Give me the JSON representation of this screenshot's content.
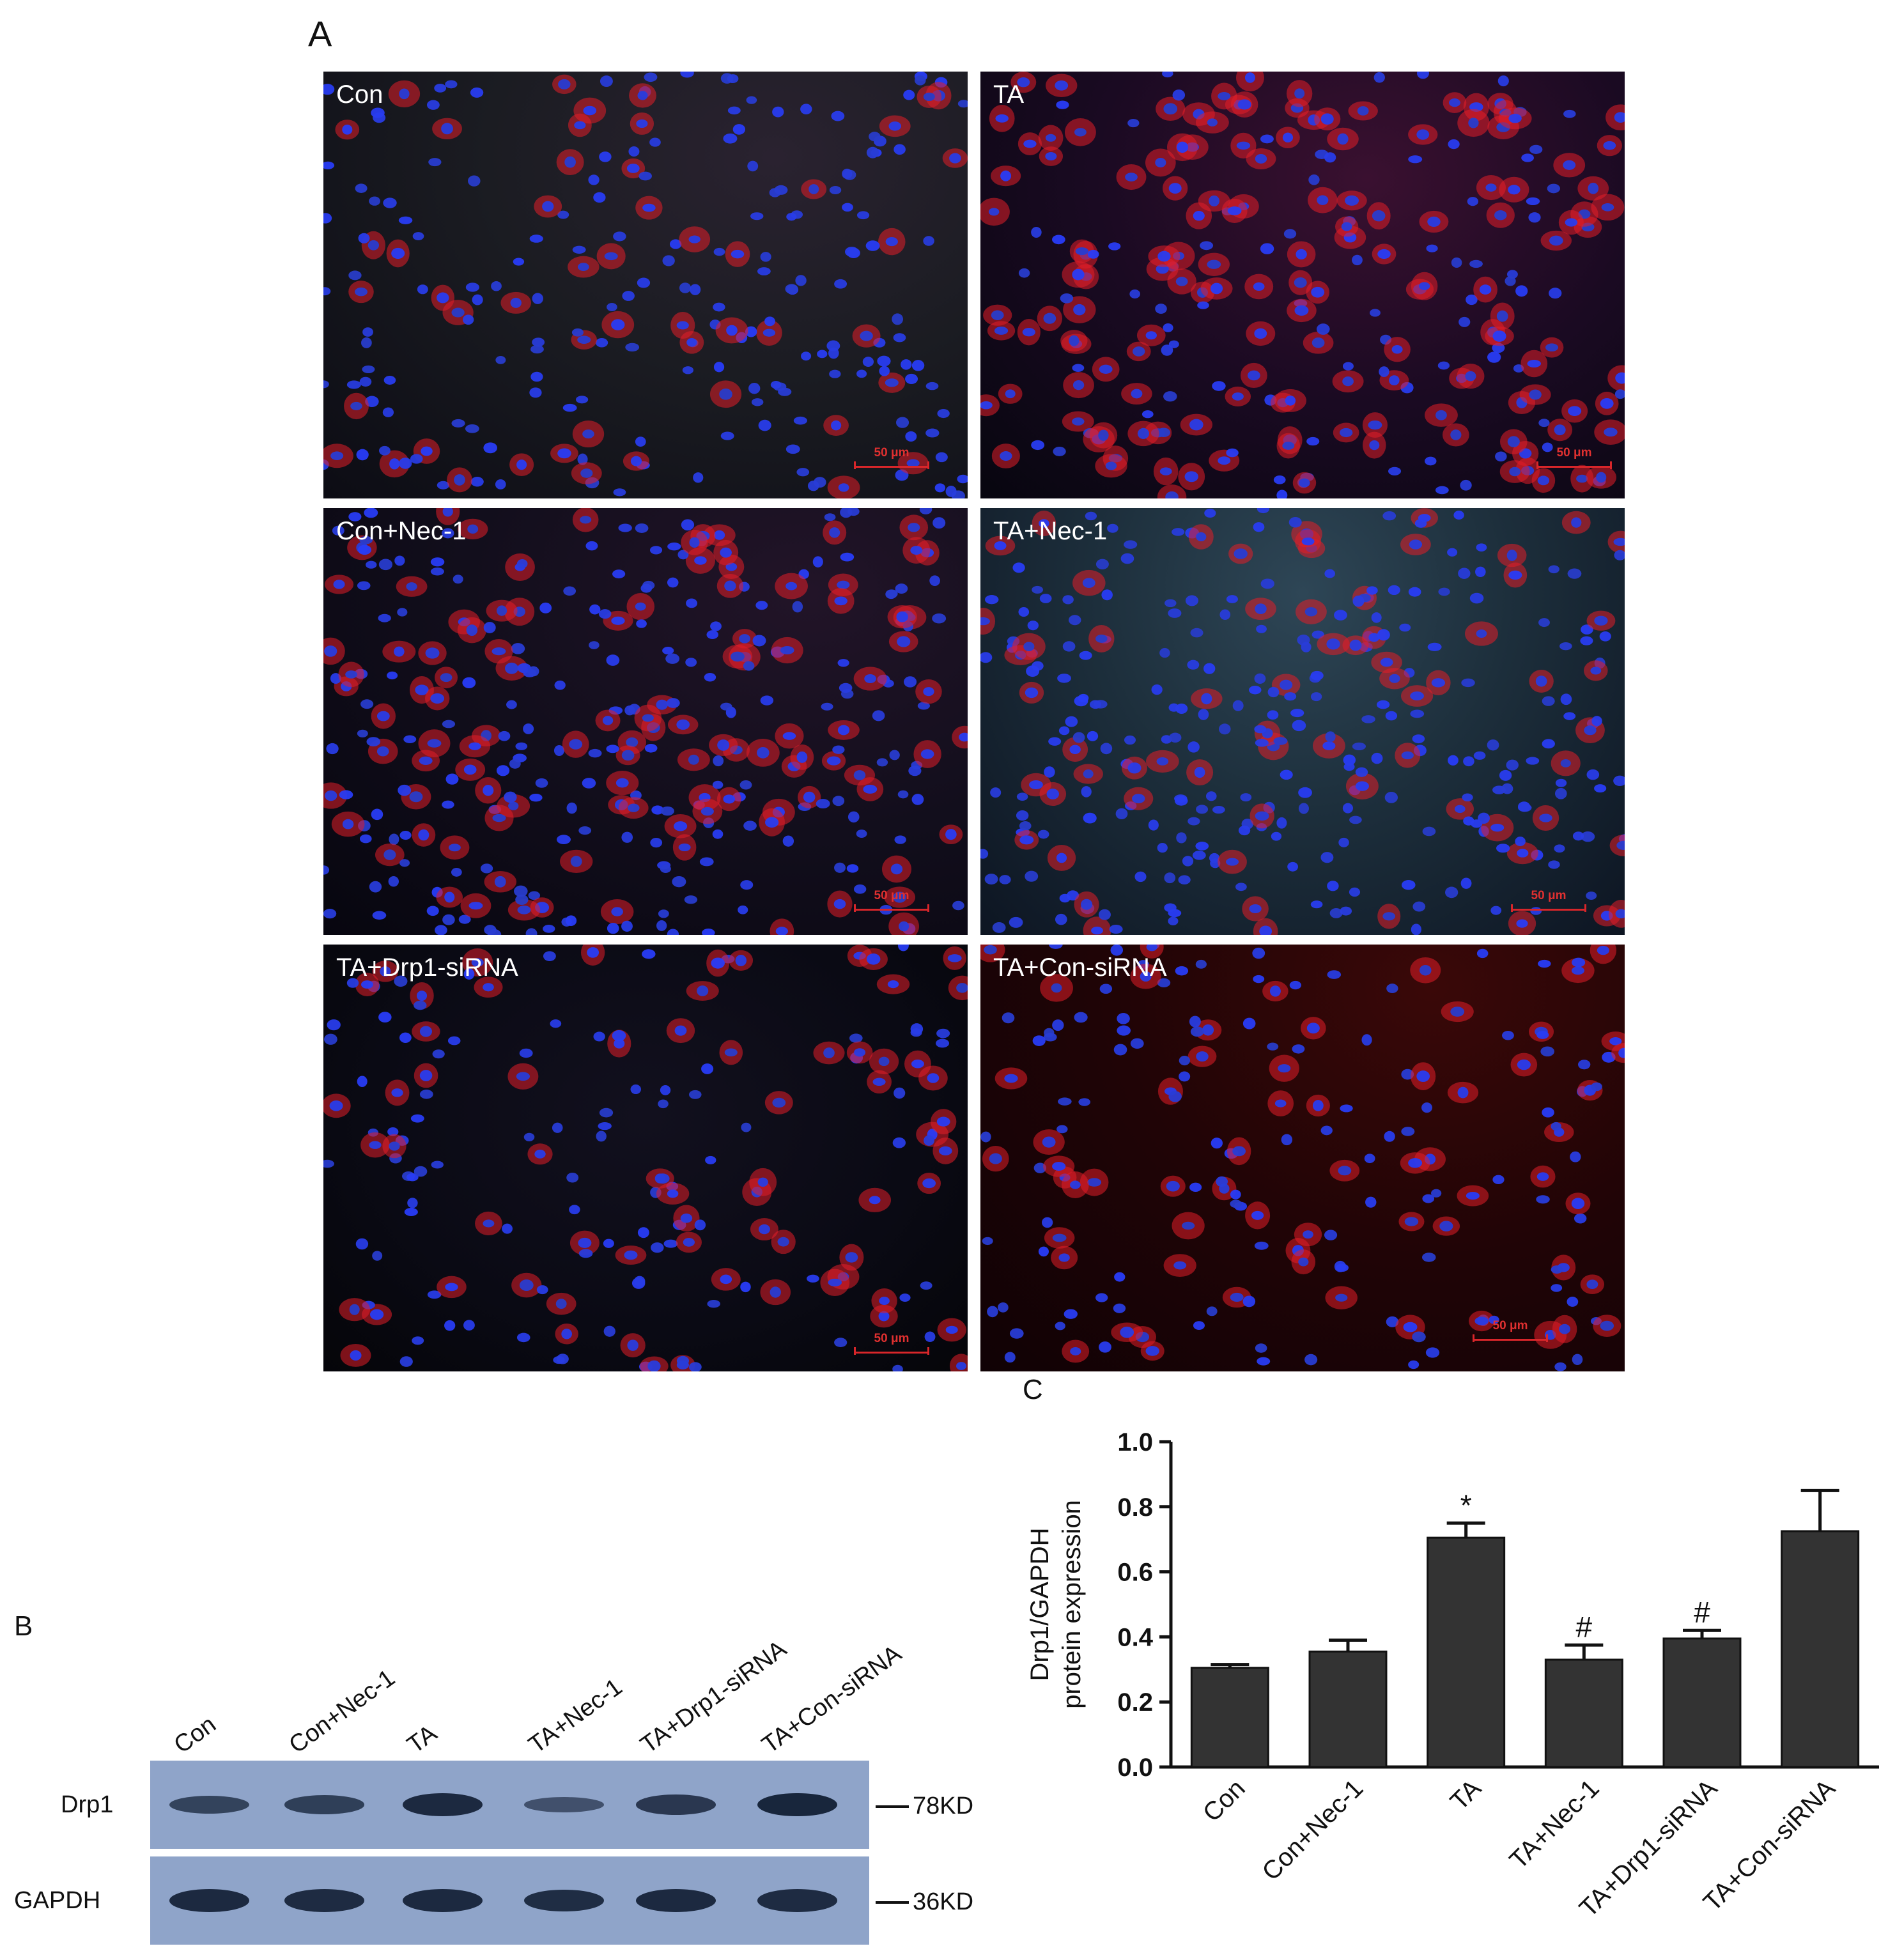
{
  "panels": {
    "a": "A",
    "b": "B",
    "c": "C"
  },
  "micrographs": [
    {
      "label": "Con",
      "scale": "50 μm"
    },
    {
      "label": "TA",
      "scale": "50 μm"
    },
    {
      "label": "Con+Nec-1",
      "scale": "50 μm"
    },
    {
      "label": "TA+Nec-1",
      "scale": "50 μm"
    },
    {
      "label": "TA+Drp1-siRNA",
      "scale": "50 μm"
    },
    {
      "label": "TA+Con-siRNA",
      "scale": "50 μm"
    }
  ],
  "western_blot": {
    "lanes": [
      "Con",
      "Con+Nec-1",
      "TA",
      "TA+Nec-1",
      "TA+Drp1-siRNA",
      "TA+Con-siRNA"
    ],
    "rows": [
      {
        "label": "Drp1",
        "marker": "78KD",
        "intensities": [
          0.55,
          0.6,
          0.9,
          0.35,
          0.7,
          0.95
        ]
      },
      {
        "label": "GAPDH",
        "marker": "36KD",
        "intensities": [
          0.9,
          0.88,
          0.9,
          0.85,
          0.9,
          0.88
        ]
      }
    ]
  },
  "chart_data": {
    "type": "bar",
    "title": "",
    "xlabel": "",
    "ylabel": "Drp1/GAPDH",
    "ylabel2": "protein expression",
    "categories": [
      "Con",
      "Con+Nec-1",
      "TA",
      "TA+Nec-1",
      "TA+Drp1-siRNA",
      "TA+Con-siRNA"
    ],
    "values": [
      0.305,
      0.355,
      0.705,
      0.33,
      0.395,
      0.725
    ],
    "errors": [
      0.01,
      0.035,
      0.045,
      0.045,
      0.025,
      0.125
    ],
    "annotations": [
      "",
      "",
      "*",
      "#",
      "#",
      ""
    ],
    "ylim": [
      0.0,
      1.0
    ],
    "yticks": [
      "0.0",
      "0.2",
      "0.4",
      "0.6",
      "0.8",
      "1.0"
    ],
    "bar_color": "#333333",
    "grid": false
  }
}
